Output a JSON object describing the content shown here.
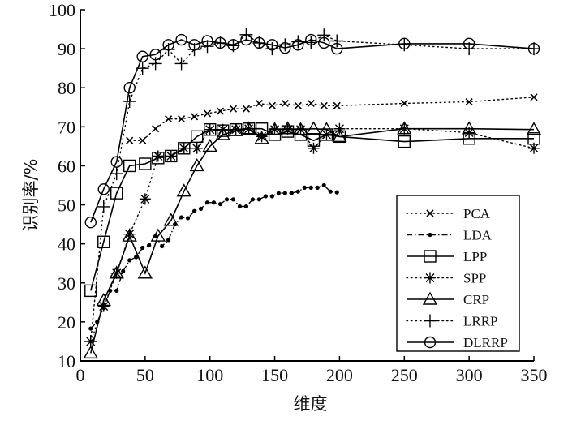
{
  "chart_data": {
    "type": "line",
    "title": "",
    "xlabel": "维度",
    "ylabel": "识别率/%",
    "xlim": [
      0,
      350
    ],
    "ylim": [
      10,
      100
    ],
    "xticks": [
      0,
      50,
      100,
      150,
      200,
      250,
      300,
      350
    ],
    "xtick_labels": [
      "0",
      "50",
      "100",
      "150",
      "200",
      "250",
      "300",
      "350"
    ],
    "yticks": [
      10,
      20,
      30,
      40,
      50,
      60,
      70,
      80,
      90,
      100
    ],
    "ytick_labels": [
      "10",
      "20",
      "30",
      "40",
      "50",
      "60",
      "70",
      "80",
      "90",
      "100"
    ],
    "grid": false,
    "legend_position": "bottom-right",
    "series": [
      {
        "name": "PCA",
        "marker": "x",
        "line": "dotted",
        "x": [
          38,
          48,
          58,
          68,
          78,
          88,
          98,
          108,
          118,
          128,
          138,
          148,
          158,
          168,
          178,
          188,
          198,
          250,
          300,
          350
        ],
        "y": [
          66.5,
          66.5,
          69.5,
          72,
          72,
          72.6,
          73.4,
          74,
          74.6,
          74.6,
          76,
          75.4,
          76,
          75.4,
          76,
          75.4,
          75.4,
          76,
          76.4,
          77.6
        ]
      },
      {
        "name": "LDA",
        "marker": "dot",
        "line": "dashdot",
        "x": [
          8,
          13,
          18,
          23,
          28,
          33,
          38,
          43,
          48,
          53,
          58,
          63,
          68,
          73,
          78,
          83,
          88,
          93,
          98,
          103,
          108,
          113,
          118,
          123,
          128,
          133,
          138,
          143,
          148,
          153,
          158,
          163,
          168,
          173,
          178,
          183,
          188,
          193,
          198
        ],
        "y": [
          18.3,
          20,
          23.6,
          28,
          28,
          33,
          35.8,
          36.6,
          39,
          39.6,
          42,
          39.4,
          41,
          45,
          46.8,
          46.6,
          48.4,
          49,
          50.6,
          50.6,
          50.2,
          51.4,
          51.4,
          49.6,
          49.6,
          51.4,
          51.4,
          52.2,
          52.2,
          53,
          53,
          53,
          53.4,
          54.4,
          54.4,
          54.4,
          55,
          53.4,
          53.2
        ]
      },
      {
        "name": "LPP",
        "marker": "square",
        "line": "solid",
        "x": [
          8,
          18,
          28,
          38,
          50,
          60,
          70,
          80,
          90,
          100,
          110,
          120,
          130,
          140,
          150,
          160,
          170,
          180,
          190,
          200,
          250,
          300,
          350
        ],
        "y": [
          28,
          40.5,
          53,
          60,
          60.5,
          62,
          62.5,
          64.5,
          67.5,
          69.3,
          69,
          69.3,
          69.5,
          69.5,
          68,
          68.8,
          68,
          66.5,
          68,
          67.5,
          66.2,
          67,
          67
        ]
      },
      {
        "name": "SPP",
        "marker": "asterisk",
        "line": "dotted",
        "x": [
          8,
          18,
          28,
          38,
          50,
          60,
          70,
          80,
          90,
          100,
          110,
          120,
          130,
          140,
          150,
          160,
          170,
          180,
          190,
          200,
          250,
          300,
          350
        ],
        "y": [
          15,
          24,
          32.5,
          42.5,
          51.5,
          62.5,
          62.5,
          64.5,
          64.5,
          69.3,
          69.3,
          69.3,
          69.5,
          67.5,
          69.3,
          69.3,
          69.3,
          64.5,
          68,
          69.5,
          69.5,
          68.5,
          64.5
        ]
      },
      {
        "name": "CRP",
        "marker": "triangle",
        "line": "solid",
        "x": [
          8,
          18,
          28,
          38,
          50,
          60,
          70,
          80,
          90,
          100,
          110,
          120,
          130,
          140,
          150,
          160,
          170,
          180,
          190,
          200,
          250,
          300,
          350
        ],
        "y": [
          12,
          25.5,
          32.5,
          42,
          32.5,
          42,
          46,
          53.5,
          60,
          65,
          68,
          69,
          69.5,
          67,
          69.3,
          69.5,
          69.3,
          69.5,
          69.3,
          67.5,
          69.5,
          69.5,
          69.3
        ]
      },
      {
        "name": "LRRP",
        "marker": "plus",
        "line": "dotted",
        "x": [
          8,
          18,
          28,
          38,
          48,
          58,
          68,
          78,
          88,
          98,
          108,
          118,
          128,
          138,
          148,
          158,
          168,
          178,
          188,
          198,
          250,
          300,
          350
        ],
        "y": [
          15,
          49.5,
          58,
          76.5,
          85,
          86.2,
          89.8,
          86.2,
          89.8,
          90.6,
          91.5,
          90.8,
          93.6,
          91.5,
          90,
          91,
          91.8,
          91.6,
          93.5,
          92,
          91,
          90,
          90
        ]
      },
      {
        "name": "DLRRP",
        "marker": "circle",
        "line": "solid",
        "x": [
          8,
          18,
          28,
          38,
          48,
          58,
          68,
          78,
          88,
          98,
          108,
          118,
          128,
          138,
          148,
          158,
          168,
          178,
          188,
          198,
          250,
          300,
          350
        ],
        "y": [
          45.5,
          54,
          61,
          80,
          88,
          88.5,
          91,
          92.3,
          91,
          92,
          91.5,
          91,
          92.3,
          91.5,
          91,
          90.2,
          91,
          92.3,
          91.5,
          90,
          91.3,
          91.3,
          90
        ]
      }
    ]
  }
}
